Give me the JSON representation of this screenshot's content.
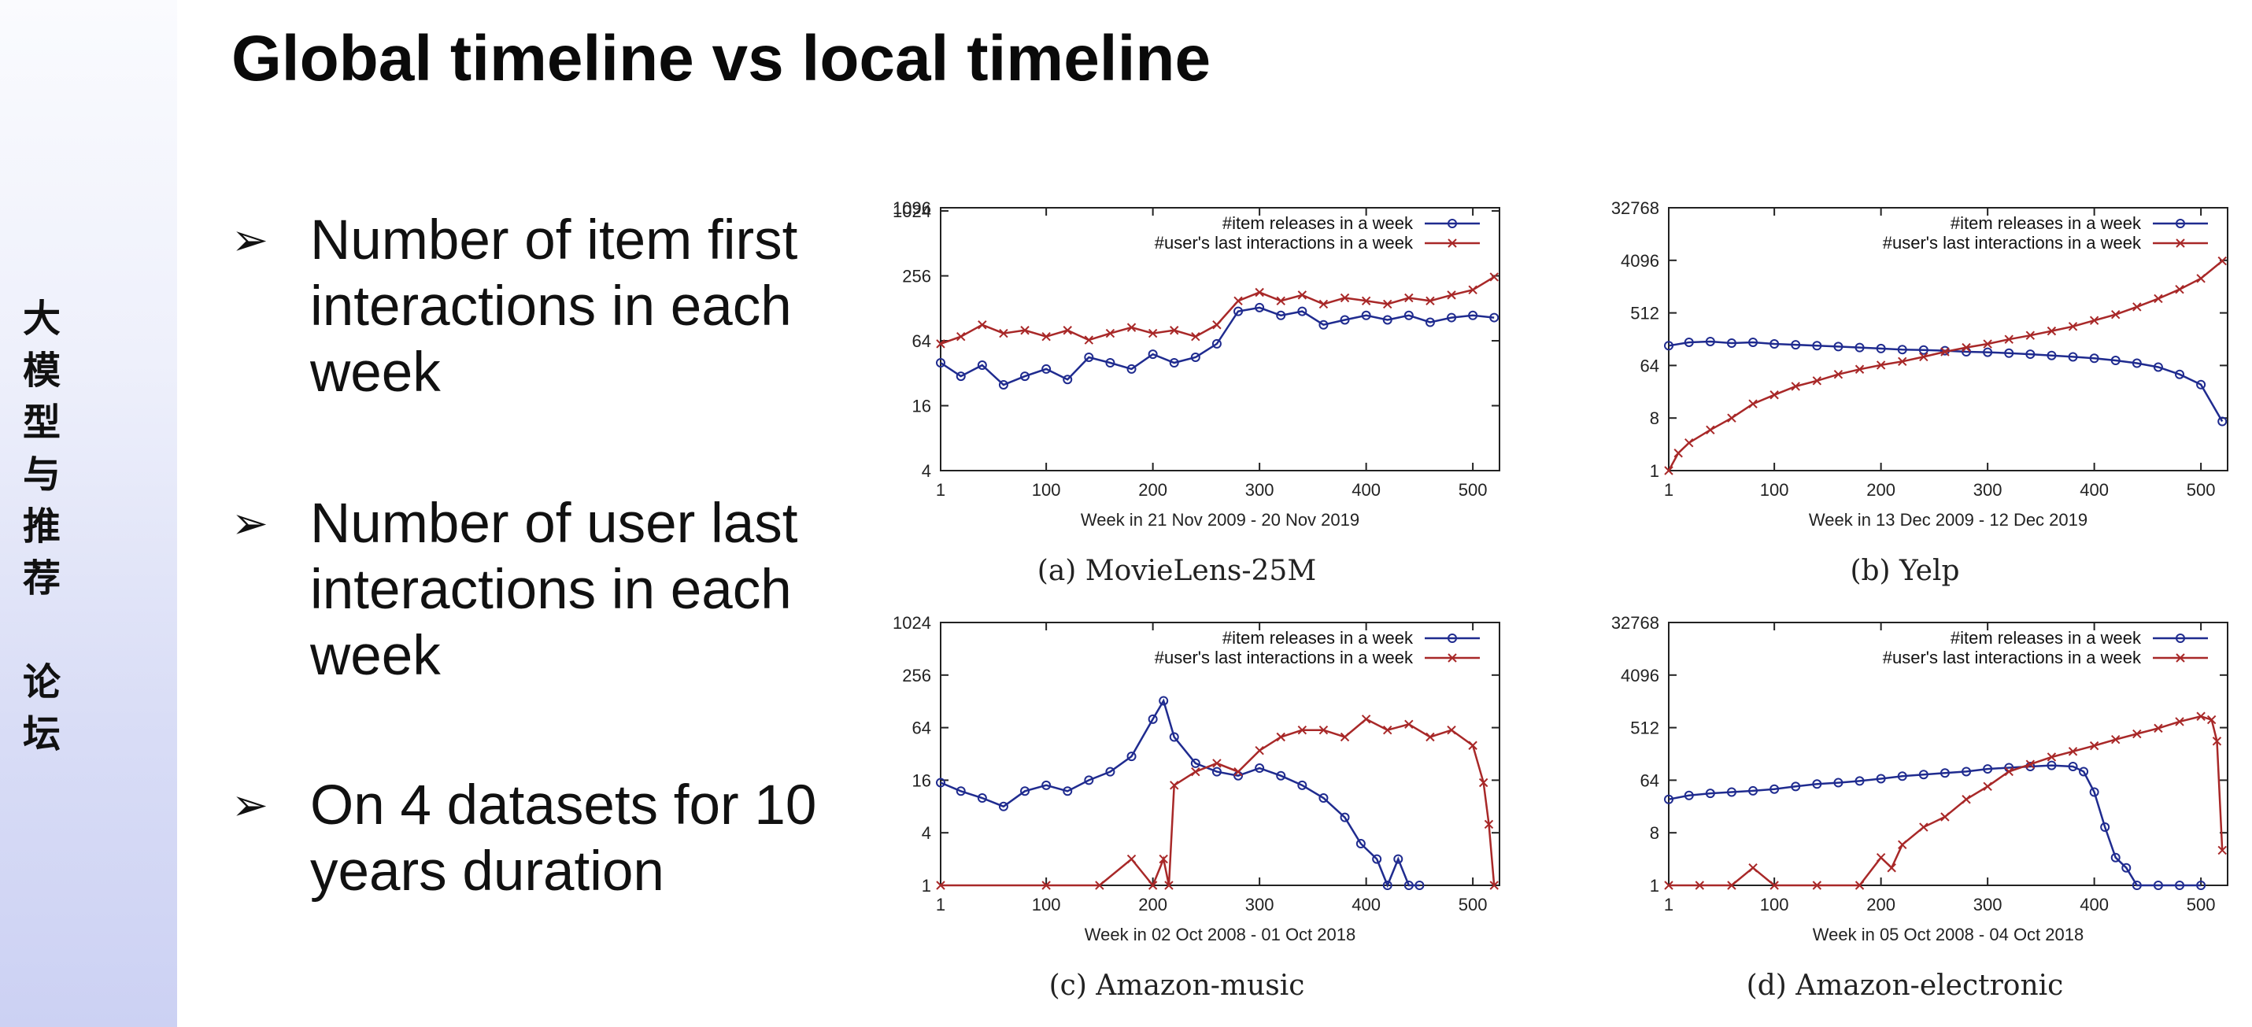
{
  "sidebar": {
    "text": "大\n模\n型\n与\n推\n荐\n\n论\n坛"
  },
  "slide": {
    "title": "Global timeline vs local timeline",
    "bullet_symbol": "➢",
    "bullets": [
      "Number of item first interactions in each week",
      "Number of user last interactions in each week",
      "On 4 datasets for 10 years duration"
    ]
  },
  "colors": {
    "item_series": "#1f2b8f",
    "user_series": "#a82828",
    "frame": "#222222"
  },
  "chart_data": [
    {
      "type": "line",
      "caption": "(a) MovieLens-25M",
      "xlabel": "Week in 21 Nov 2009 - 20 Nov 2019",
      "ylabel": "",
      "xlim": [
        1,
        525
      ],
      "xticks": [
        1,
        100,
        200,
        300,
        400,
        500
      ],
      "yscale": "log2",
      "ylim": [
        4,
        1096
      ],
      "yticks": [
        "4",
        "16",
        "64",
        "256",
        "1024",
        "1096"
      ],
      "legend": "top-right",
      "series": [
        {
          "name": "#item releases in a week",
          "marker": "circle",
          "x": [
            1,
            20,
            40,
            60,
            80,
            100,
            120,
            140,
            160,
            180,
            200,
            220,
            240,
            260,
            280,
            300,
            320,
            340,
            360,
            380,
            400,
            420,
            440,
            460,
            480,
            500,
            520
          ],
          "values": [
            40,
            30,
            38,
            25,
            30,
            35,
            28,
            45,
            40,
            35,
            48,
            40,
            45,
            60,
            120,
            130,
            110,
            120,
            90,
            100,
            110,
            100,
            110,
            95,
            105,
            110,
            105
          ]
        },
        {
          "name": "#user's last interactions in a week",
          "marker": "cross",
          "x": [
            1,
            20,
            40,
            60,
            80,
            100,
            120,
            140,
            160,
            180,
            200,
            220,
            240,
            260,
            280,
            300,
            320,
            340,
            360,
            380,
            400,
            420,
            440,
            460,
            480,
            500,
            520
          ],
          "values": [
            60,
            70,
            90,
            75,
            80,
            70,
            80,
            65,
            75,
            85,
            75,
            80,
            70,
            90,
            150,
            180,
            150,
            170,
            140,
            160,
            150,
            140,
            160,
            150,
            170,
            190,
            250
          ]
        }
      ]
    },
    {
      "type": "line",
      "caption": "(b) Yelp",
      "xlabel": "Week in 13 Dec 2009 - 12 Dec 2019",
      "ylabel": "",
      "xlim": [
        1,
        525
      ],
      "xticks": [
        1,
        100,
        200,
        300,
        400,
        500
      ],
      "yscale": "log2",
      "ylim": [
        1,
        32768
      ],
      "yticks": [
        "1",
        "8",
        "64",
        "512",
        "4096",
        "32768"
      ],
      "legend": "top-right",
      "series": [
        {
          "name": "#item releases in a week",
          "marker": "circle",
          "x": [
            1,
            20,
            40,
            60,
            80,
            100,
            120,
            140,
            160,
            180,
            200,
            220,
            240,
            260,
            280,
            300,
            320,
            340,
            360,
            380,
            400,
            420,
            440,
            460,
            480,
            500,
            520
          ],
          "values": [
            140,
            160,
            165,
            155,
            160,
            150,
            145,
            140,
            135,
            130,
            125,
            120,
            118,
            115,
            110,
            108,
            104,
            100,
            95,
            90,
            85,
            78,
            70,
            60,
            45,
            30,
            7
          ]
        },
        {
          "name": "#user's last interactions in a week",
          "marker": "cross",
          "x": [
            1,
            10,
            20,
            40,
            60,
            80,
            100,
            120,
            140,
            160,
            180,
            200,
            220,
            240,
            260,
            280,
            300,
            320,
            340,
            360,
            380,
            400,
            420,
            440,
            460,
            480,
            500,
            520
          ],
          "values": [
            1,
            2,
            3,
            5,
            8,
            14,
            20,
            28,
            35,
            45,
            55,
            65,
            75,
            90,
            110,
            130,
            150,
            180,
            210,
            250,
            300,
            380,
            480,
            650,
            900,
            1300,
            2000,
            4000
          ]
        }
      ]
    },
    {
      "type": "line",
      "caption": "(c) Amazon-music",
      "xlabel": "Week in 02 Oct 2008 - 01 Oct 2018",
      "ylabel": "",
      "xlim": [
        1,
        525
      ],
      "xticks": [
        1,
        100,
        200,
        300,
        400,
        500
      ],
      "yscale": "log2",
      "ylim": [
        1,
        1024
      ],
      "yticks": [
        "1",
        "4",
        "16",
        "64",
        "256",
        "1024"
      ],
      "legend": "top-right",
      "series": [
        {
          "name": "#item releases in a week",
          "marker": "circle",
          "x": [
            1,
            20,
            40,
            60,
            80,
            100,
            120,
            140,
            160,
            180,
            200,
            210,
            220,
            240,
            260,
            280,
            300,
            320,
            340,
            360,
            380,
            395,
            410,
            420,
            430,
            440,
            450
          ],
          "values": [
            15,
            12,
            10,
            8,
            12,
            14,
            12,
            16,
            20,
            30,
            80,
            130,
            50,
            25,
            20,
            18,
            22,
            18,
            14,
            10,
            6,
            3,
            2,
            1,
            2,
            1,
            1
          ]
        },
        {
          "name": "#user's last interactions in a week",
          "marker": "cross",
          "x": [
            1,
            100,
            150,
            180,
            200,
            210,
            215,
            220,
            240,
            260,
            280,
            300,
            320,
            340,
            360,
            380,
            400,
            420,
            440,
            460,
            480,
            500,
            510,
            515,
            520
          ],
          "values": [
            1,
            1,
            1,
            2,
            1,
            2,
            1,
            14,
            20,
            25,
            20,
            35,
            50,
            60,
            60,
            50,
            80,
            60,
            70,
            50,
            60,
            40,
            15,
            5,
            1
          ]
        }
      ]
    },
    {
      "type": "line",
      "caption": "(d) Amazon-electronic",
      "xlabel": "Week in 05 Oct 2008 - 04 Oct 2018",
      "ylabel": "",
      "xlim": [
        1,
        525
      ],
      "xticks": [
        1,
        100,
        200,
        300,
        400,
        500
      ],
      "yscale": "log2",
      "ylim": [
        1,
        32768
      ],
      "yticks": [
        "1",
        "8",
        "64",
        "512",
        "4096",
        "32768"
      ],
      "legend": "top-right",
      "series": [
        {
          "name": "#item releases in a week",
          "marker": "circle",
          "x": [
            1,
            20,
            40,
            60,
            80,
            100,
            120,
            140,
            160,
            180,
            200,
            220,
            240,
            260,
            280,
            300,
            320,
            340,
            360,
            380,
            390,
            400,
            410,
            420,
            430,
            440,
            460,
            480,
            500
          ],
          "values": [
            30,
            35,
            38,
            40,
            42,
            45,
            50,
            55,
            58,
            62,
            68,
            75,
            80,
            85,
            90,
            100,
            105,
            110,
            115,
            110,
            90,
            40,
            10,
            3,
            2,
            1,
            1,
            1,
            1
          ]
        },
        {
          "name": "#user's last interactions in a week",
          "marker": "cross",
          "x": [
            1,
            30,
            60,
            80,
            100,
            140,
            180,
            200,
            210,
            220,
            240,
            260,
            280,
            300,
            320,
            340,
            360,
            380,
            400,
            420,
            440,
            460,
            480,
            500,
            510,
            515,
            520
          ],
          "values": [
            1,
            1,
            1,
            2,
            1,
            1,
            1,
            3,
            2,
            5,
            10,
            15,
            30,
            50,
            90,
            120,
            160,
            200,
            250,
            320,
            400,
            500,
            650,
            800,
            700,
            300,
            4
          ]
        }
      ]
    }
  ]
}
